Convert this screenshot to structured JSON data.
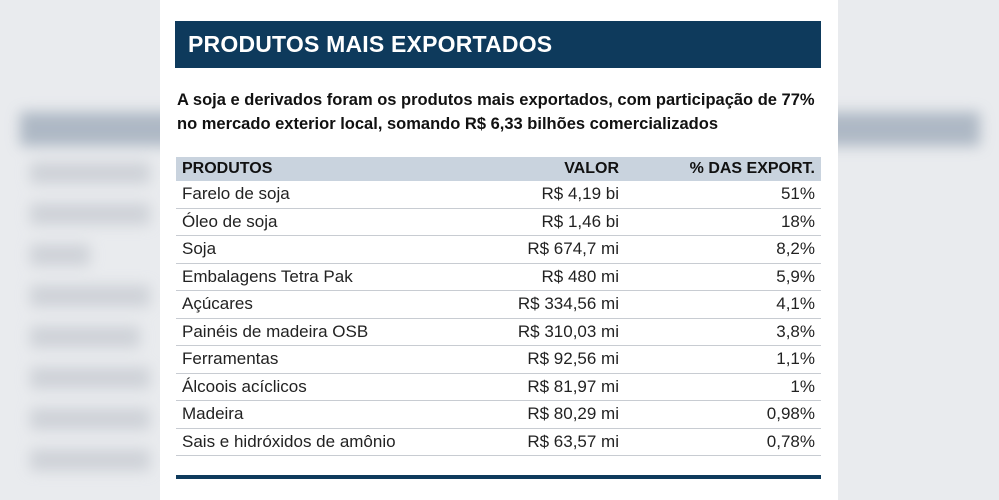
{
  "title": "PRODUTOS MAIS EXPORTADOS",
  "intro": "A soja e derivados foram os produtos mais exportados, com participação de 77% no mercado exterior local, somando R$ 6,33 bilhões comercializados",
  "table": {
    "headers": [
      "PRODUTOS",
      "VALOR",
      "% DAS EXPORT."
    ],
    "rows": [
      {
        "produto": "Farelo de soja",
        "valor": "R$ 4,19 bi",
        "pct": "51%"
      },
      {
        "produto": "Óleo de soja",
        "valor": "R$ 1,46 bi",
        "pct": "18%"
      },
      {
        "produto": "Soja",
        "valor": "R$ 674,7 mi",
        "pct": "8,2%"
      },
      {
        "produto": "Embalagens Tetra Pak",
        "valor": "R$ 480 mi",
        "pct": "5,9%"
      },
      {
        "produto": "Açúcares",
        "valor": "R$ 334,56 mi",
        "pct": "4,1%"
      },
      {
        "produto": "Painéis de madeira OSB",
        "valor": "R$ 310,03 mi",
        "pct": "3,8%"
      },
      {
        "produto": "Ferramentas",
        "valor": "R$ 92,56 mi",
        "pct": "1,1%"
      },
      {
        "produto": "Álcoois acíclicos",
        "valor": "R$ 81,97 mi",
        "pct": "1%"
      },
      {
        "produto": "Madeira",
        "valor": "R$ 80,29 mi",
        "pct": "0,98%"
      },
      {
        "produto": "Sais e hidróxidos de amônio",
        "valor": "R$ 63,57 mi",
        "pct": "0,78%"
      }
    ]
  },
  "colors": {
    "header_bar": "#0e3a5c",
    "table_header": "#c9d3de"
  }
}
